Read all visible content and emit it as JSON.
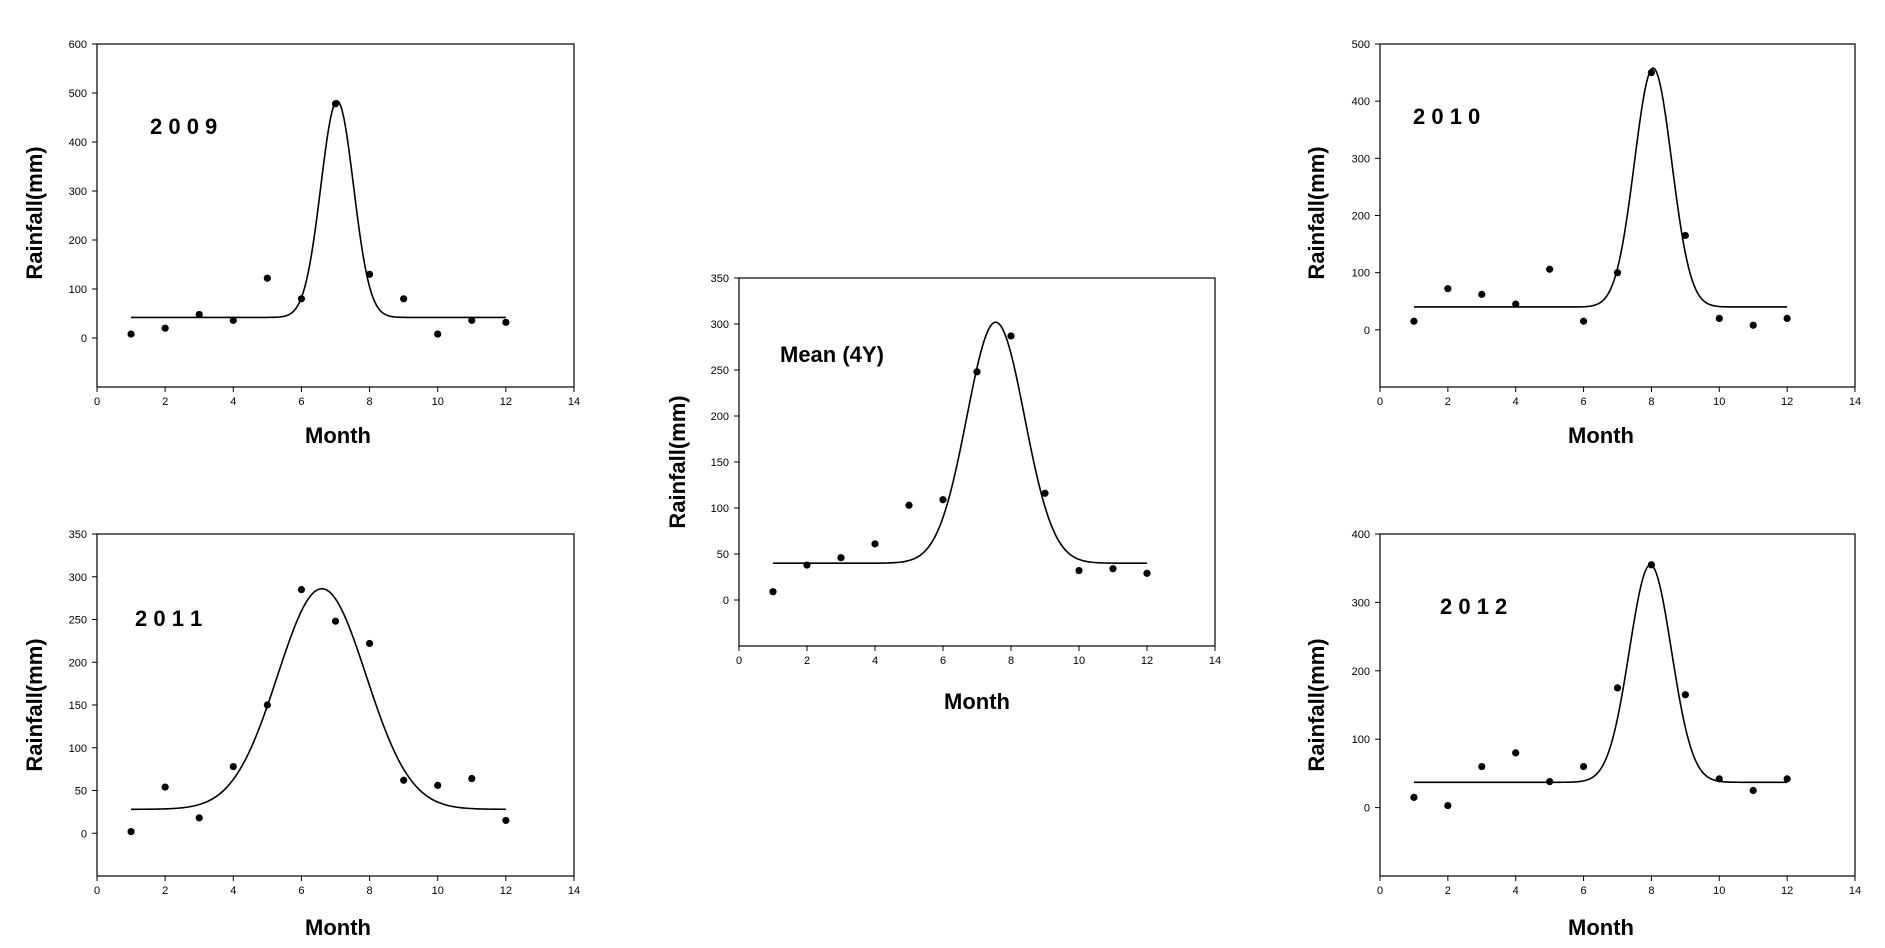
{
  "chart_data": [
    {
      "id": "p2009",
      "type": "scatter",
      "panel_label": "2 0 0 9",
      "xlabel": "Month",
      "ylabel": "Rainfall(mm)",
      "xlim": [
        0,
        14
      ],
      "ylim": [
        -100,
        600
      ],
      "xticks": [
        0,
        2,
        4,
        6,
        8,
        10,
        12,
        14
      ],
      "yticks": [
        0,
        100,
        200,
        300,
        400,
        500,
        600
      ],
      "points": {
        "x": [
          1,
          2,
          3,
          4,
          5,
          6,
          7,
          8,
          9,
          10,
          11,
          12
        ],
        "y": [
          8,
          20,
          48,
          36,
          122,
          80,
          478,
          130,
          80,
          8,
          36,
          32
        ]
      },
      "fit": {
        "baseline": 42,
        "amplitude": 442,
        "center": 7.05,
        "sigma": 0.48
      }
    },
    {
      "id": "p2010",
      "type": "scatter",
      "panel_label": "2 0 1 0",
      "xlabel": "Month",
      "ylabel": "Rainfall(mm)",
      "xlim": [
        0,
        14
      ],
      "ylim": [
        -100,
        500
      ],
      "xticks": [
        0,
        2,
        4,
        6,
        8,
        10,
        12,
        14
      ],
      "yticks": [
        0,
        100,
        200,
        300,
        400,
        500
      ],
      "points": {
        "x": [
          1,
          2,
          3,
          4,
          5,
          6,
          7,
          8,
          9,
          10,
          11,
          12
        ],
        "y": [
          15,
          72,
          62,
          45,
          106,
          15,
          100,
          450,
          165,
          20,
          8,
          20
        ]
      },
      "fit": {
        "baseline": 40,
        "amplitude": 418,
        "center": 8.05,
        "sigma": 0.55
      }
    },
    {
      "id": "pMean",
      "type": "scatter",
      "panel_label": "Mean (4Y)",
      "xlabel": "Month",
      "ylabel": "Rainfall(mm)",
      "xlim": [
        0,
        14
      ],
      "ylim": [
        -50,
        350
      ],
      "xticks": [
        0,
        2,
        4,
        6,
        8,
        10,
        12,
        14
      ],
      "yticks": [
        0,
        50,
        100,
        150,
        200,
        250,
        300,
        350
      ],
      "points": {
        "x": [
          1,
          2,
          3,
          4,
          5,
          6,
          7,
          8,
          9,
          10,
          11,
          12
        ],
        "y": [
          9,
          38,
          46,
          61,
          103,
          109,
          248,
          287,
          116,
          32,
          34,
          29
        ]
      },
      "fit": {
        "baseline": 40,
        "amplitude": 262,
        "center": 7.55,
        "sigma": 0.85
      }
    },
    {
      "id": "p2011",
      "type": "scatter",
      "panel_label": "2 0 1 1",
      "xlabel": "Month",
      "ylabel": "Rainfall(mm)",
      "xlim": [
        0,
        14
      ],
      "ylim": [
        -50,
        350
      ],
      "xticks": [
        0,
        2,
        4,
        6,
        8,
        10,
        12,
        14
      ],
      "yticks": [
        0,
        50,
        100,
        150,
        200,
        250,
        300,
        350
      ],
      "points": {
        "x": [
          1,
          2,
          3,
          4,
          5,
          6,
          7,
          8,
          9,
          10,
          11,
          12
        ],
        "y": [
          2,
          54,
          18,
          78,
          150,
          285,
          248,
          222,
          62,
          56,
          64,
          15
        ]
      },
      "fit": {
        "baseline": 28,
        "amplitude": 258,
        "center": 6.6,
        "sigma": 1.3
      }
    },
    {
      "id": "p2012",
      "type": "scatter",
      "panel_label": "2 0 1 2",
      "xlabel": "Month",
      "ylabel": "Rainfall(mm)",
      "xlim": [
        0,
        14
      ],
      "ylim": [
        -100,
        400
      ],
      "xticks": [
        0,
        2,
        4,
        6,
        8,
        10,
        12,
        14
      ],
      "yticks": [
        0,
        100,
        200,
        300,
        400
      ],
      "points": {
        "x": [
          1,
          2,
          3,
          4,
          5,
          6,
          7,
          8,
          9,
          10,
          11,
          12
        ],
        "y": [
          15,
          3,
          60,
          80,
          38,
          60,
          175,
          355,
          165,
          42,
          25,
          42
        ]
      },
      "fit": {
        "baseline": 37,
        "amplitude": 318,
        "center": 7.97,
        "sigma": 0.62
      }
    }
  ]
}
